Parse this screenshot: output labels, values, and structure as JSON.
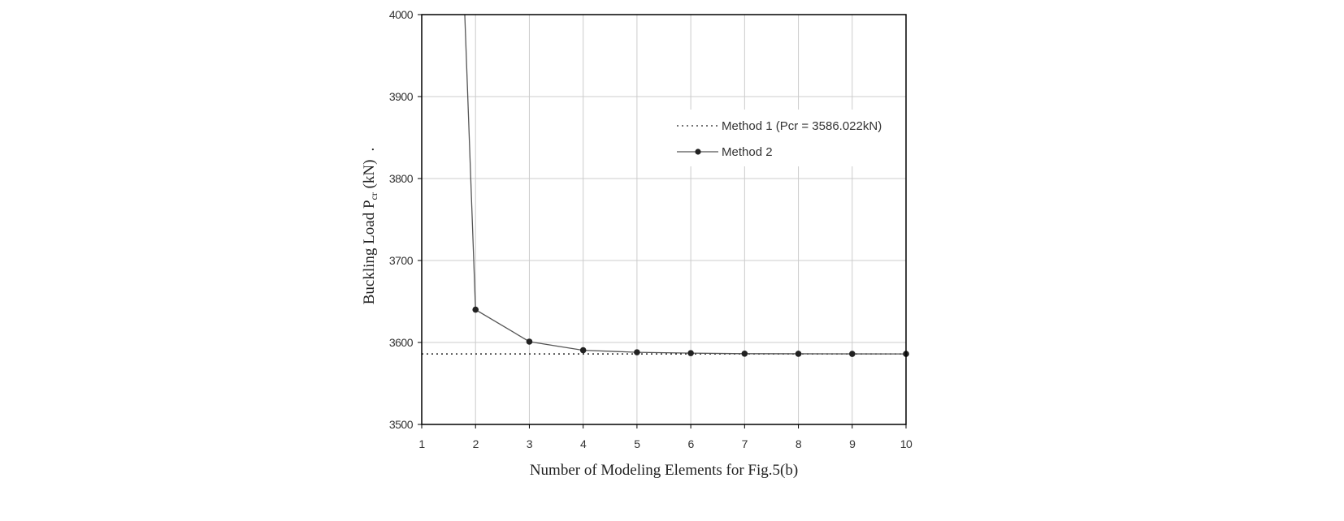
{
  "chart_data": {
    "type": "line",
    "title": "",
    "xlabel": "Number of Modeling Elements for Fig.5(b)",
    "ylabel_main": "Buckling Load P",
    "ylabel_sub": "cr",
    "ylabel_tail": " (kN)",
    "ylabel_dot": ".",
    "xlim": [
      1,
      10
    ],
    "ylim": [
      3500,
      4000
    ],
    "x_ticks": [
      1,
      2,
      3,
      4,
      5,
      6,
      7,
      8,
      9,
      10
    ],
    "y_ticks": [
      3500,
      3600,
      3700,
      3800,
      3900,
      4000
    ],
    "x_tick_labels": [
      "1",
      "2",
      "3",
      "4",
      "5",
      "6",
      "7",
      "8",
      "9",
      "10"
    ],
    "y_tick_labels": [
      "3500",
      "3600",
      "3700",
      "3800",
      "3900",
      "4000"
    ],
    "grid": true,
    "legend_position": "top-right",
    "series": [
      {
        "name": "Method 1 (Pcr = 3586.022kN)",
        "style": "dotted",
        "marker": false,
        "x": [
          1,
          10
        ],
        "y": [
          3586.022,
          3586.022
        ]
      },
      {
        "name": "Method 2",
        "style": "solid",
        "marker": true,
        "x": [
          1.8,
          2,
          3,
          4,
          5,
          6,
          7,
          8,
          9,
          10
        ],
        "y": [
          4000,
          3640,
          3601,
          3590.5,
          3588,
          3587,
          3586.3,
          3586.2,
          3586.1,
          3586.05
        ],
        "marker_from_index": 1
      }
    ]
  },
  "colors": {
    "axis": "#000000",
    "grid": "#cccccc",
    "line": "#555555",
    "marker": "#222222",
    "dotted": "#222222"
  }
}
